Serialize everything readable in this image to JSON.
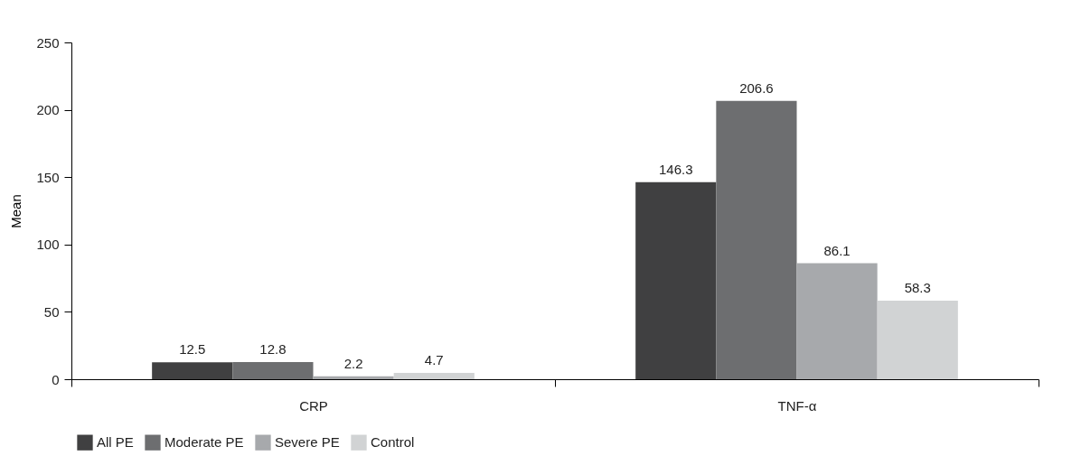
{
  "chart_data": {
    "type": "bar",
    "ylabel": "Mean",
    "categories": [
      "CRP",
      "TNF-α"
    ],
    "series": [
      {
        "name": "All PE",
        "color": "#404041",
        "values": [
          12.5,
          146.3
        ]
      },
      {
        "name": "Moderate PE",
        "color": "#6d6e70",
        "values": [
          12.8,
          206.6
        ]
      },
      {
        "name": "Severe PE",
        "color": "#a7a9ac",
        "values": [
          2.2,
          86.1
        ]
      },
      {
        "name": "Control",
        "color": "#d1d3d4",
        "values": [
          4.7,
          58.3
        ]
      }
    ],
    "ylim": [
      0,
      250
    ],
    "yticks": [
      0,
      50,
      100,
      150,
      200,
      250
    ],
    "grid": false,
    "legend": "bottom",
    "data_labels": true
  }
}
